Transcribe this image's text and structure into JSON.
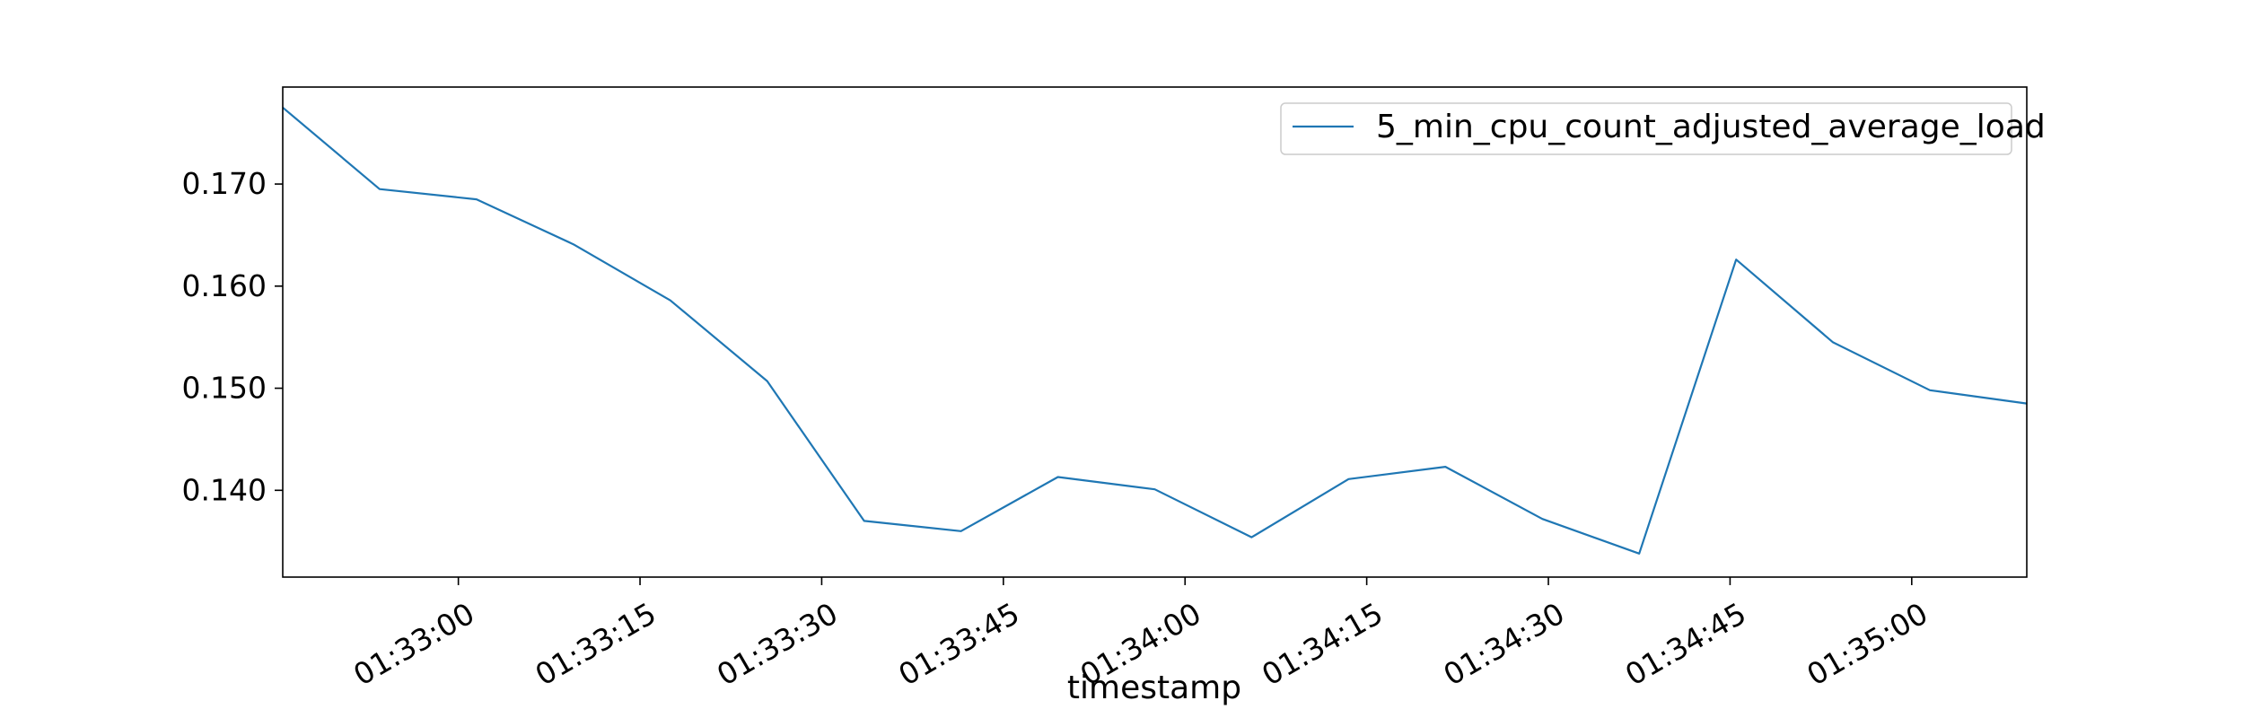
{
  "chart_data": {
    "type": "line",
    "title": "",
    "xlabel": "timestamp",
    "ylabel": "",
    "legend_position": "top-right",
    "grid": false,
    "line_color": "#1f77b4",
    "x_tick_labels": [
      "01:33:00",
      "01:33:15",
      "01:33:30",
      "01:33:45",
      "01:34:00",
      "01:34:15",
      "01:34:30",
      "01:34:45",
      "01:35:00"
    ],
    "y_tick_labels": [
      "0.140",
      "0.150",
      "0.160",
      "0.170"
    ],
    "y_ticks": [
      0.14,
      0.15,
      0.16,
      0.17
    ],
    "x_ticks": [
      "01:33:00",
      "01:33:15",
      "01:33:30",
      "01:33:45",
      "01:34:00",
      "01:34:15",
      "01:34:30",
      "01:34:45",
      "01:35:00"
    ],
    "xlim": [
      "01:32:45.5",
      "01:35:09.5"
    ],
    "ylim": [
      0.1315,
      0.1795
    ],
    "series": [
      {
        "name": "5_min_cpu_count_adjusted_average_load",
        "x": [
          "01:32:45.5",
          "01:32:53.5",
          "01:33:01.5",
          "01:33:09.5",
          "01:33:17.5",
          "01:33:25.5",
          "01:33:33.5",
          "01:33:41.5",
          "01:33:49.5",
          "01:33:57.5",
          "01:34:05.5",
          "01:34:13.5",
          "01:34:21.5",
          "01:34:29.5",
          "01:34:37.5",
          "01:34:45.5",
          "01:34:53.5",
          "01:35:01.5",
          "01:35:09.5"
        ],
        "values": [
          0.1775,
          0.1695,
          0.1685,
          0.1641,
          0.1586,
          0.1507,
          0.137,
          0.136,
          0.1413,
          0.1401,
          0.1354,
          0.1411,
          0.1423,
          0.1372,
          0.1338,
          0.1626,
          0.1545,
          0.1498,
          0.1485
        ]
      }
    ]
  }
}
